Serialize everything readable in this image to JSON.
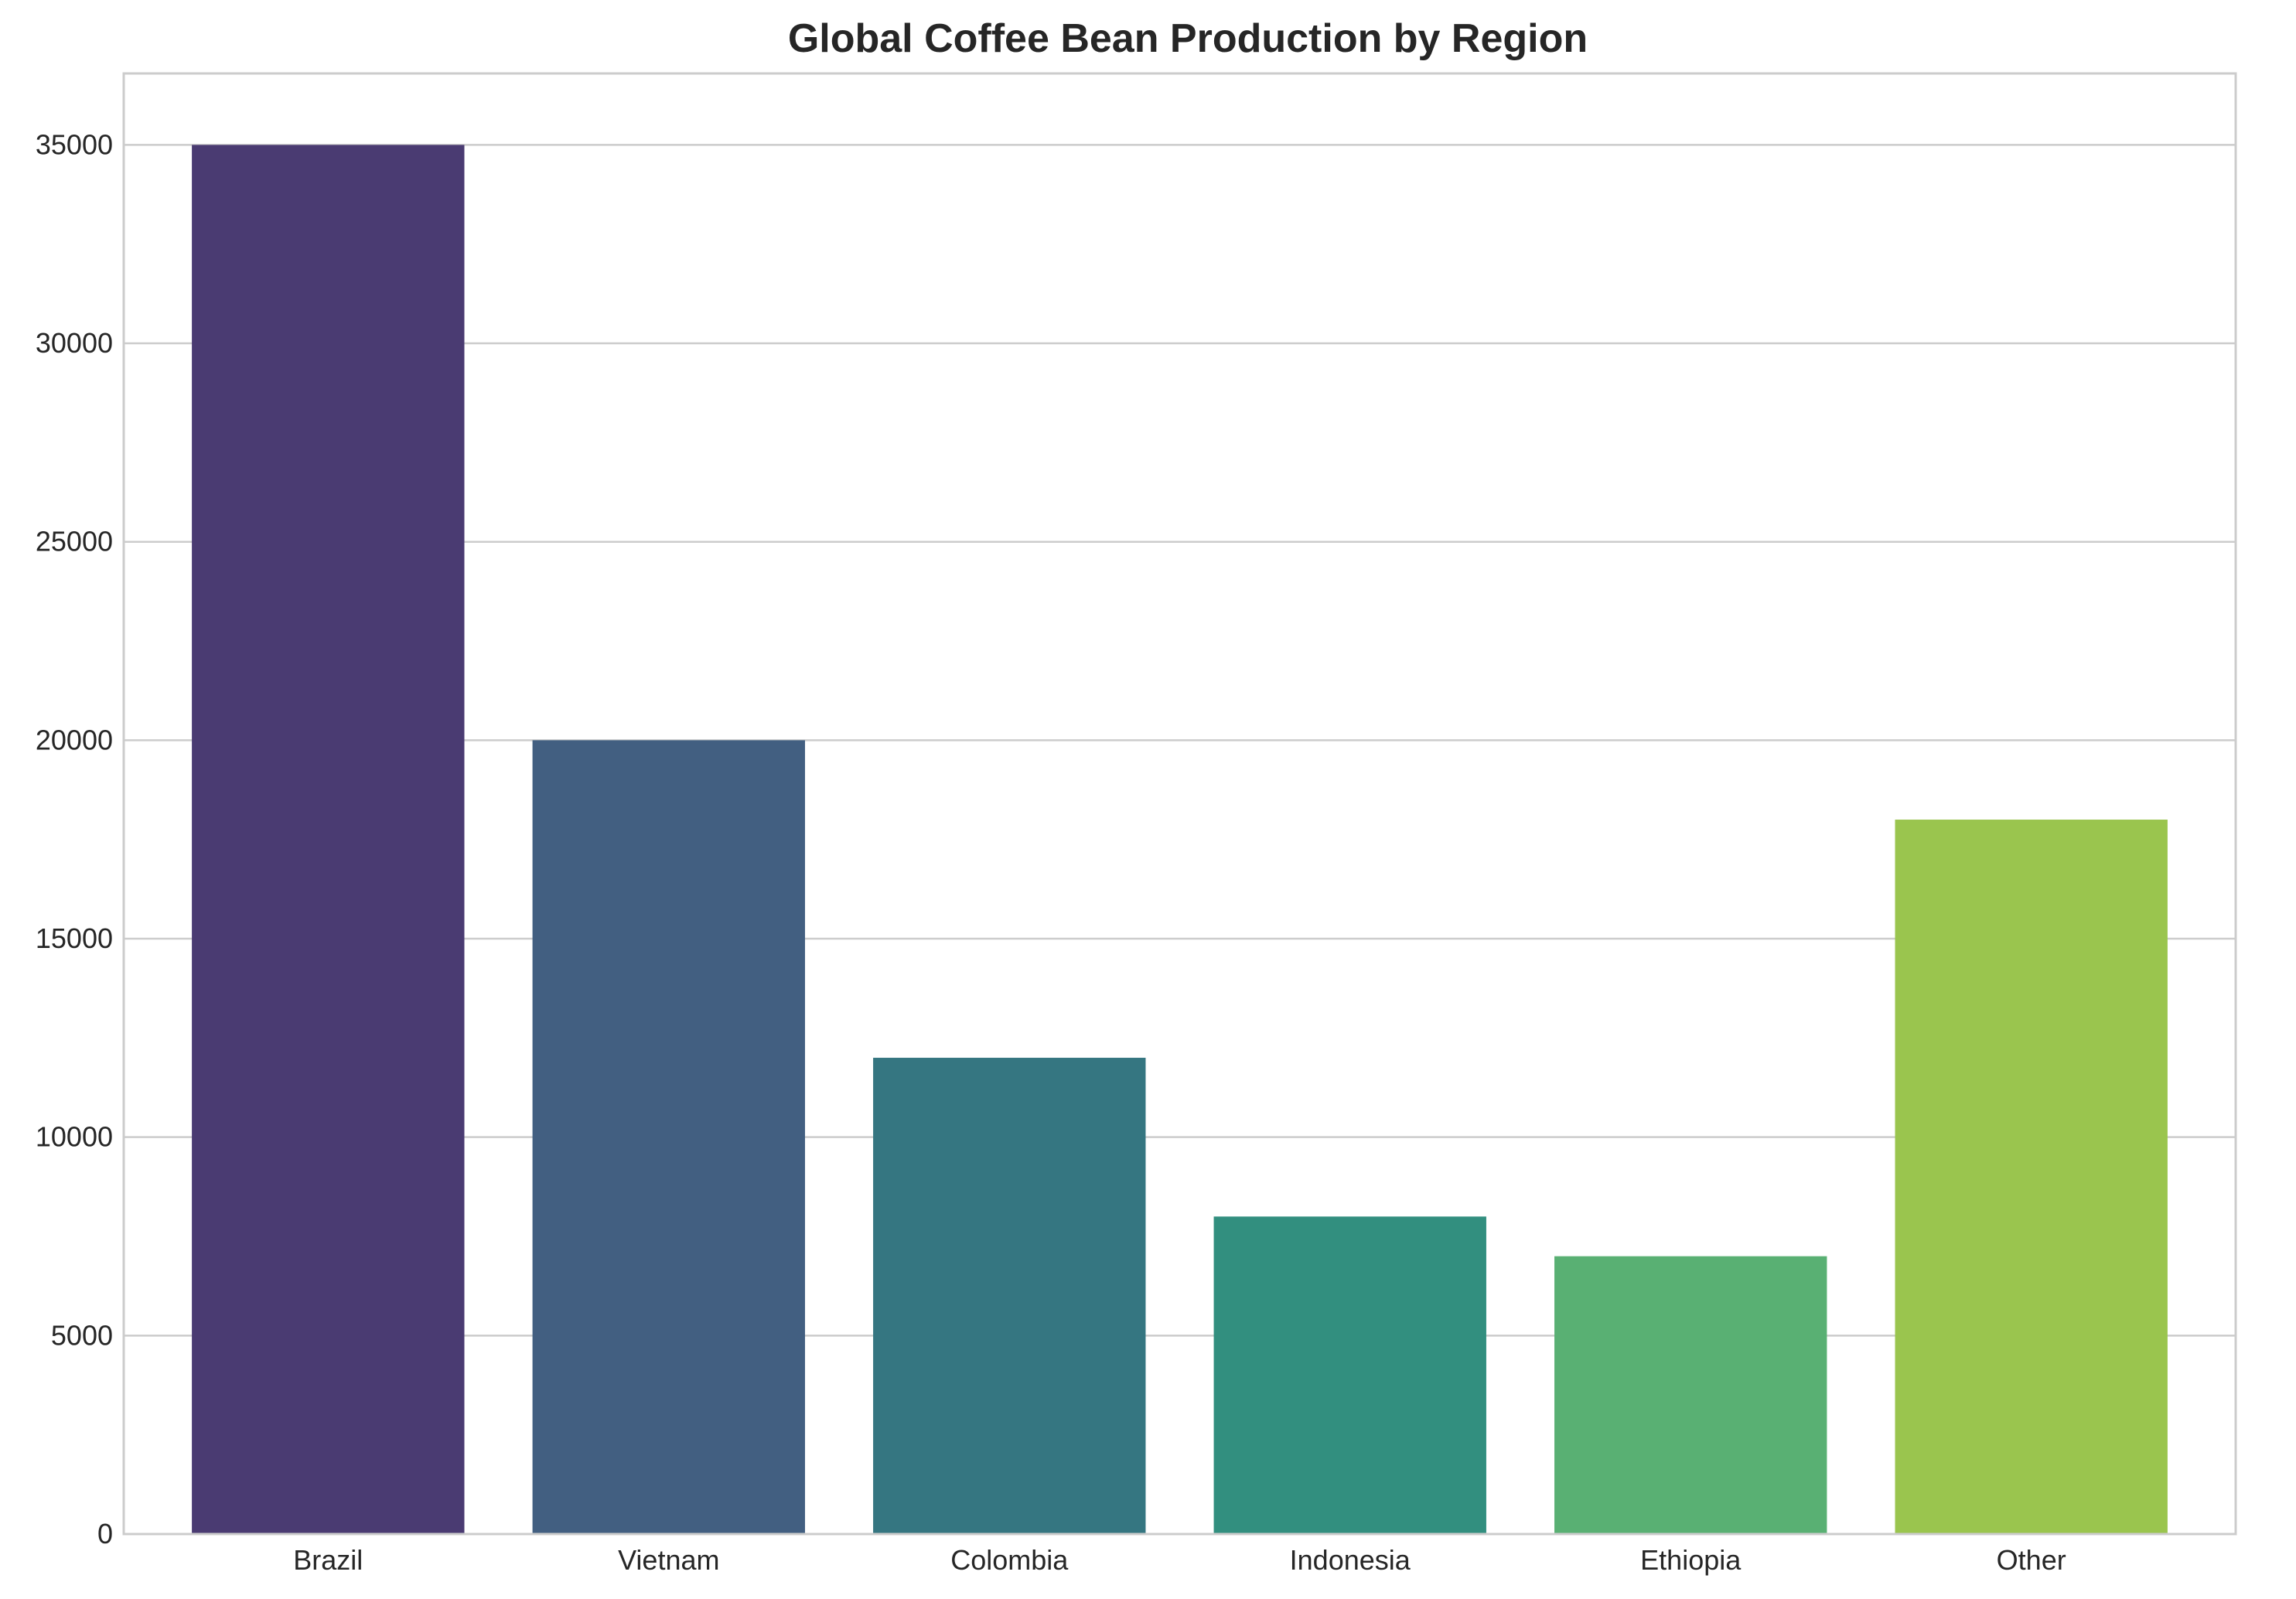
{
  "chart_data": {
    "type": "bar",
    "title": "Global Coffee Bean Production by Region",
    "xlabel": "",
    "ylabel": "",
    "categories": [
      "Brazil",
      "Vietnam",
      "Colombia",
      "Indonesia",
      "Ethiopia",
      "Other"
    ],
    "values": [
      35000,
      20000,
      12000,
      8000,
      7000,
      18000
    ],
    "colors": [
      "#4a3b72",
      "#425f81",
      "#357681",
      "#328f7f",
      "#59b073",
      "#9ac54e"
    ],
    "ylim": [
      0,
      36800
    ],
    "yticks": [
      0,
      5000,
      10000,
      15000,
      20000,
      25000,
      30000,
      35000
    ],
    "grid": "horizontal",
    "legend": "none"
  }
}
